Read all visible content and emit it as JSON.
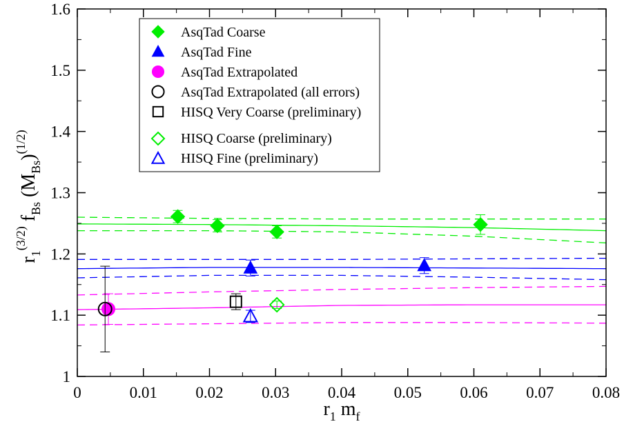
{
  "chart_data": {
    "type": "scatter",
    "title": "",
    "xlim": [
      0,
      0.08
    ],
    "ylim": [
      1.0,
      1.6
    ],
    "x_ticks": [
      "0",
      "0.01",
      "0.02",
      "0.03",
      "0.04",
      "0.05",
      "0.06",
      "0.07",
      "0.08"
    ],
    "x_tick_values": [
      0,
      0.01,
      0.02,
      0.03,
      0.04,
      0.05,
      0.06,
      0.07,
      0.08
    ],
    "y_ticks": [
      "1",
      "1.1",
      "1.2",
      "1.3",
      "1.4",
      "1.5",
      "1.6"
    ],
    "y_tick_values": [
      1.0,
      1.1,
      1.2,
      1.3,
      1.4,
      1.5,
      1.6
    ],
    "xlabel": {
      "r": "r",
      "sub1": "1",
      "m": " m",
      "subf": "f"
    },
    "ylabel": {
      "r": "r",
      "sub1": "1",
      "sup1": "(3/2)",
      "f": " f",
      "subBs": "Bs",
      "paren": " (M",
      "subBs2": "Bs",
      "close": ")",
      "sup2": "(1/2)"
    },
    "legend_position": "top-center",
    "grid": false,
    "series": [
      {
        "name": "AsqTad Coarse",
        "marker": "diamond-filled",
        "color": "#00ee00",
        "points": [
          {
            "x": 0.0152,
            "y": 1.261,
            "err": 0.01
          },
          {
            "x": 0.0212,
            "y": 1.246,
            "err": 0.01
          },
          {
            "x": 0.0302,
            "y": 1.236,
            "err": 0.01
          },
          {
            "x": 0.061,
            "y": 1.248,
            "err": 0.016
          }
        ]
      },
      {
        "name": "AsqTad Fine",
        "marker": "triangle-filled",
        "color": "#0000ff",
        "points": [
          {
            "x": 0.0262,
            "y": 1.177,
            "err": 0.013
          },
          {
            "x": 0.0525,
            "y": 1.181,
            "err": 0.013
          }
        ]
      },
      {
        "name": "AsqTad Extrapolated",
        "marker": "circle-filled",
        "color": "#ff00ff",
        "points": [
          {
            "x": 0.0047,
            "y": 1.11,
            "err": 0.025
          }
        ]
      },
      {
        "name": "AsqTad Extrapolated (all errors)",
        "marker": "circle-open",
        "color": "#000000",
        "points": [
          {
            "x": 0.0042,
            "y": 1.11,
            "err": 0.07
          }
        ]
      },
      {
        "name": "HISQ Very Coarse (preliminary)",
        "marker": "square-open",
        "color": "#000000",
        "points": [
          {
            "x": 0.024,
            "y": 1.122,
            "err": 0.013
          }
        ]
      },
      {
        "name": "HISQ Coarse (preliminary)",
        "marker": "diamond-open",
        "color": "#00ee00",
        "points": [
          {
            "x": 0.0302,
            "y": 1.117,
            "err": 0.006
          }
        ]
      },
      {
        "name": "HISQ Fine (preliminary)",
        "marker": "triangle-open",
        "color": "#0000ff",
        "points": [
          {
            "x": 0.0262,
            "y": 1.098,
            "err": 0.01
          }
        ]
      }
    ],
    "fit_curves": [
      {
        "color": "#00ee00",
        "style": "solid",
        "x": [
          0,
          0.02,
          0.04,
          0.06,
          0.08
        ],
        "y": [
          1.249,
          1.248,
          1.246,
          1.243,
          1.238
        ]
      },
      {
        "color": "#00ee00",
        "style": "dashed",
        "x": [
          0,
          0.02,
          0.04,
          0.06,
          0.08
        ],
        "y": [
          1.26,
          1.258,
          1.257,
          1.257,
          1.257
        ]
      },
      {
        "color": "#00ee00",
        "style": "dashed",
        "x": [
          0,
          0.02,
          0.04,
          0.06,
          0.08
        ],
        "y": [
          1.238,
          1.238,
          1.236,
          1.229,
          1.218
        ]
      },
      {
        "color": "#0000ff",
        "style": "solid",
        "x": [
          0,
          0.02,
          0.04,
          0.06,
          0.08
        ],
        "y": [
          1.176,
          1.178,
          1.178,
          1.177,
          1.176
        ]
      },
      {
        "color": "#0000ff",
        "style": "dashed",
        "x": [
          0,
          0.02,
          0.04,
          0.06,
          0.08
        ],
        "y": [
          1.191,
          1.191,
          1.191,
          1.192,
          1.193
        ]
      },
      {
        "color": "#0000ff",
        "style": "dashed",
        "x": [
          0,
          0.02,
          0.04,
          0.06,
          0.08
        ],
        "y": [
          1.161,
          1.165,
          1.165,
          1.162,
          1.158
        ]
      },
      {
        "color": "#ff00ff",
        "style": "solid",
        "x": [
          0,
          0.02,
          0.04,
          0.06,
          0.08
        ],
        "y": [
          1.109,
          1.112,
          1.116,
          1.117,
          1.117
        ]
      },
      {
        "color": "#ff00ff",
        "style": "dashed",
        "x": [
          0,
          0.02,
          0.04,
          0.06,
          0.08
        ],
        "y": [
          1.133,
          1.138,
          1.142,
          1.145,
          1.147
        ]
      },
      {
        "color": "#ff00ff",
        "style": "dashed",
        "x": [
          0,
          0.02,
          0.04,
          0.06,
          0.08
        ],
        "y": [
          1.084,
          1.086,
          1.088,
          1.088,
          1.087
        ]
      }
    ]
  }
}
